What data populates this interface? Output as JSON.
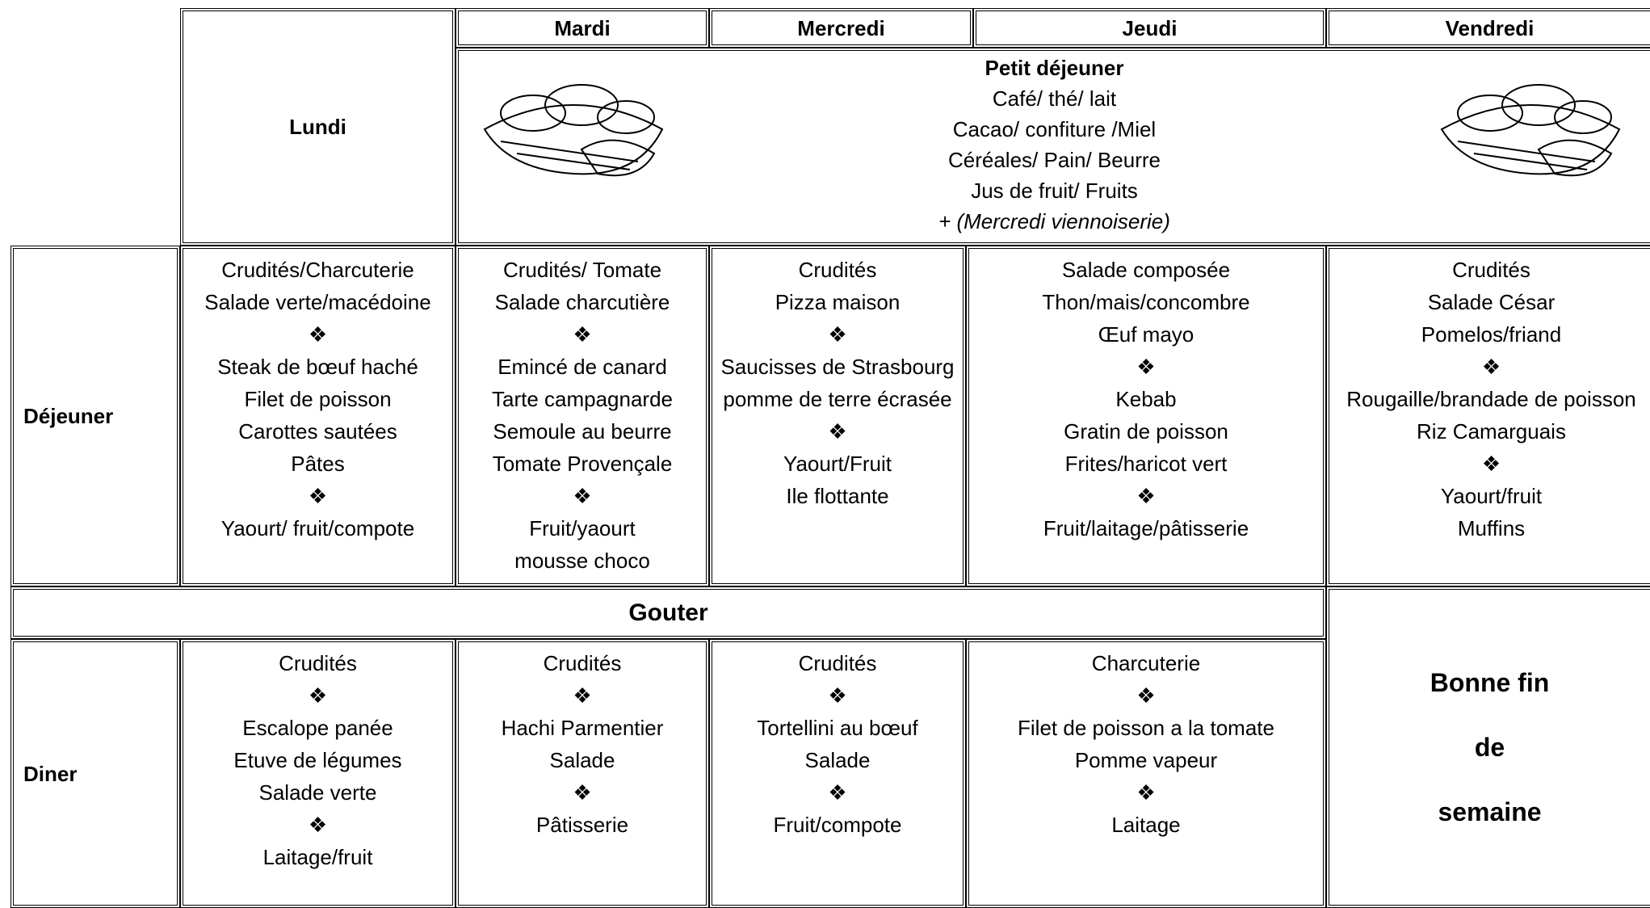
{
  "header": {
    "lunch_label": "Déjeuner",
    "gouter": "Gouter",
    "dinner_label": "Diner"
  },
  "days": [
    "Lundi",
    "Mardi",
    "Mercredi",
    "Jeudi",
    "Vendredi"
  ],
  "breakfast": {
    "title": "Petit déjeuner",
    "lines": [
      "Café/ thé/ lait",
      "Cacao/ confiture /Miel",
      "Céréales/ Pain/ Beurre",
      "Jus de fruit/ Fruits",
      "+ (Mercredi viennoiserie)"
    ]
  },
  "lunch": [
    [
      "Crudités/Charcuterie",
      "Salade verte/macédoine",
      "❖",
      "Steak de bœuf haché",
      "Filet de poisson",
      "Carottes sautées",
      "Pâtes",
      "❖",
      "Yaourt/ fruit/compote"
    ],
    [
      "Crudités/ Tomate",
      "Salade charcutière",
      "❖",
      "Emincé de canard",
      "Tarte campagnarde",
      "Semoule  au beurre",
      "Tomate Provençale",
      "❖",
      "Fruit/yaourt",
      "mousse choco"
    ],
    [
      "Crudités",
      "Pizza maison",
      "❖",
      "Saucisses de Strasbourg",
      "pomme de terre écrasée",
      "❖",
      "Yaourt/Fruit",
      "Ile flottante"
    ],
    [
      "Salade composée",
      "Thon/mais/concombre",
      "Œuf mayo",
      "❖",
      "Kebab",
      "Gratin de poisson",
      "Frites/haricot vert",
      "❖",
      "Fruit/laitage/pâtisserie"
    ],
    [
      "Crudités",
      "Salade César",
      "Pomelos/friand",
      "❖",
      "Rougaille/brandade de poisson",
      "Riz Camarguais",
      "❖",
      "Yaourt/fruit",
      "Muffins"
    ]
  ],
  "dinner": [
    [
      "Crudités",
      "❖",
      "Escalope panée",
      "Etuve de légumes",
      "Salade verte",
      "❖",
      "Laitage/fruit"
    ],
    [
      "Crudités",
      "❖",
      "Hachi Parmentier",
      "Salade",
      "❖",
      "Pâtisserie"
    ],
    [
      "Crudités",
      "❖",
      "Tortellini au bœuf",
      "Salade",
      "❖",
      "Fruit/compote"
    ],
    [
      "Charcuterie",
      "❖",
      "Filet de poisson a la tomate",
      "Pomme vapeur",
      "❖",
      "Laitage"
    ]
  ],
  "closing": [
    "Bonne fin",
    "de",
    "semaine"
  ]
}
